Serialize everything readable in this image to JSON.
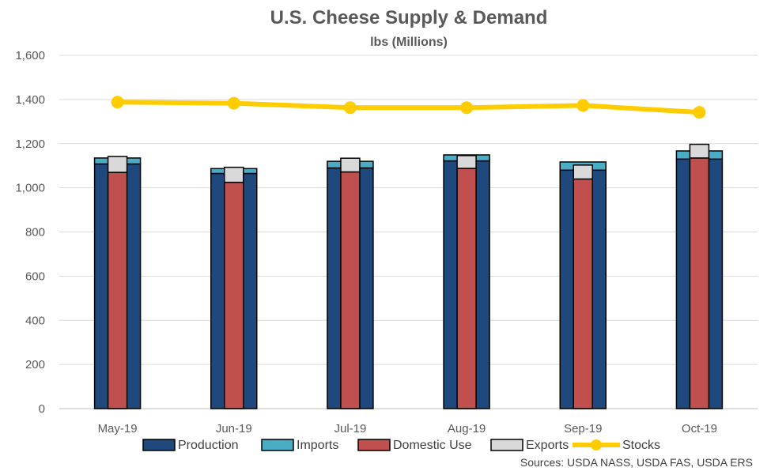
{
  "chart_data": {
    "type": "bar",
    "title": "U.S. Cheese Supply & Demand",
    "subtitle": "lbs (Millions)",
    "source": "Sources: USDA NASS, USDA FAS, USDA ERS",
    "categories": [
      "May-19",
      "Jun-19",
      "Jul-19",
      "Aug-19",
      "Sep-19",
      "Oct-19"
    ],
    "ylim": [
      0,
      1600
    ],
    "yticks": [
      0,
      200,
      400,
      600,
      800,
      1000,
      1200,
      1400,
      1600
    ],
    "ytick_labels": [
      "0",
      "200",
      "400",
      "600",
      "800",
      "1,000",
      "1,200",
      "1,400",
      "1,600"
    ],
    "grid": true,
    "legend_position": "bottom",
    "series": [
      {
        "name": "Production",
        "kind": "stacked-bar-supply",
        "color": "#1f497d",
        "values": [
          1108,
          1065,
          1090,
          1122,
          1080,
          1130
        ]
      },
      {
        "name": "Imports",
        "kind": "stacked-bar-supply",
        "color": "#4bacc6",
        "values": [
          27,
          22,
          30,
          27,
          37,
          37
        ]
      },
      {
        "name": "Domestic Use",
        "kind": "stacked-bar-demand",
        "color": "#c0504d",
        "values": [
          1070,
          1025,
          1072,
          1088,
          1040,
          1135
        ]
      },
      {
        "name": "Exports",
        "kind": "stacked-bar-demand",
        "color": "#d9d9d9",
        "values": [
          72,
          68,
          62,
          58,
          63,
          62
        ]
      },
      {
        "name": "Stocks",
        "kind": "line",
        "color": "#ffcc00",
        "values": [
          1388,
          1383,
          1363,
          1363,
          1373,
          1342
        ]
      }
    ]
  }
}
